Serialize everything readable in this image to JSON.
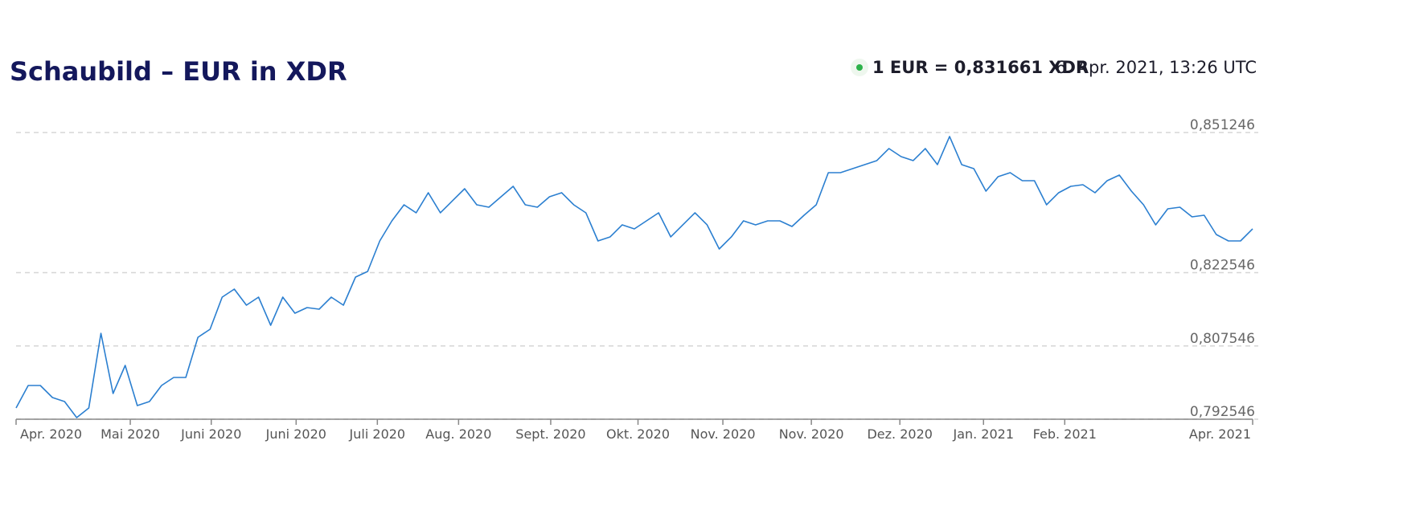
{
  "chart_data": {
    "type": "line",
    "title": "Schaubild – EUR in XDR",
    "rate_label": "1 EUR = 0,831661 XDR",
    "timestamp": "6. Apr. 2021, 13:26 UTC",
    "color": "#2b7fd0",
    "grid": true,
    "values": [
      0.794848,
      0.799452,
      0.799452,
      0.796986,
      0.796163,
      0.792875,
      0.794848,
      0.81014,
      0.797808,
      0.803563,
      0.795341,
      0.796163,
      0.799452,
      0.801096,
      0.801096,
      0.809318,
      0.810962,
      0.817539,
      0.819184,
      0.815895,
      0.817539,
      0.811784,
      0.817539,
      0.814251,
      0.815402,
      0.815073,
      0.817539,
      0.815895,
      0.82165,
      0.822801,
      0.829049,
      0.83316,
      0.836449,
      0.834805,
      0.838915,
      0.834805,
      0.837271,
      0.839737,
      0.836449,
      0.835956,
      0.838093,
      0.840231,
      0.836449,
      0.835956,
      0.838093,
      0.838915,
      0.836449,
      0.834805,
      0.829049,
      0.829872,
      0.832338,
      0.831516,
      0.83316,
      0.834805,
      0.829872,
      0.832338,
      0.834805,
      0.832338,
      0.827405,
      0.829872,
      0.83316,
      0.832338,
      0.83316,
      0.83316,
      0.832009,
      0.834311,
      0.836449,
      0.843026,
      0.843026,
      0.843848,
      0.84467,
      0.845492,
      0.847959,
      0.846315,
      0.845492,
      0.847959,
      0.84467,
      0.850425,
      0.84467,
      0.843848,
      0.839244,
      0.842204,
      0.843026,
      0.841382,
      0.841382,
      0.836449,
      0.838915,
      0.840231,
      0.84056,
      0.838915,
      0.841382,
      0.842533,
      0.839244,
      0.836449,
      0.832338,
      0.835627,
      0.835956,
      0.833982,
      0.834311,
      0.830365,
      0.829049,
      0.829049,
      0.831516
    ],
    "xlim": [
      0,
      102
    ],
    "xticks": [
      {
        "value": 0,
        "label": "Apr. 2020"
      },
      {
        "value": 9.42,
        "label": "Mai 2020"
      },
      {
        "value": 16.1,
        "label": "Juni 2020"
      },
      {
        "value": 23.1,
        "label": "Juni 2020"
      },
      {
        "value": 29.8,
        "label": "Juli 2020"
      },
      {
        "value": 36.5,
        "label": "Aug. 2020"
      },
      {
        "value": 44.1,
        "label": "Sept. 2020"
      },
      {
        "value": 51.3,
        "label": "Okt. 2020"
      },
      {
        "value": 58.3,
        "label": "Nov. 2020"
      },
      {
        "value": 65.6,
        "label": "Nov. 2020"
      },
      {
        "value": 72.9,
        "label": "Dez. 2020"
      },
      {
        "value": 79.8,
        "label": "Jan. 2021"
      },
      {
        "value": 86.5,
        "label": "Feb. 2021"
      },
      {
        "value": 102,
        "label": "Apr. 2021"
      }
    ],
    "ylim": [
      0.792546,
      0.851246
    ],
    "yticks": [
      {
        "value": 0.851246,
        "label": "0,851246"
      },
      {
        "value": 0.822546,
        "label": "0,822546"
      },
      {
        "value": 0.807546,
        "label": "0,807546"
      },
      {
        "value": 0.792546,
        "label": "0,792546"
      }
    ]
  }
}
